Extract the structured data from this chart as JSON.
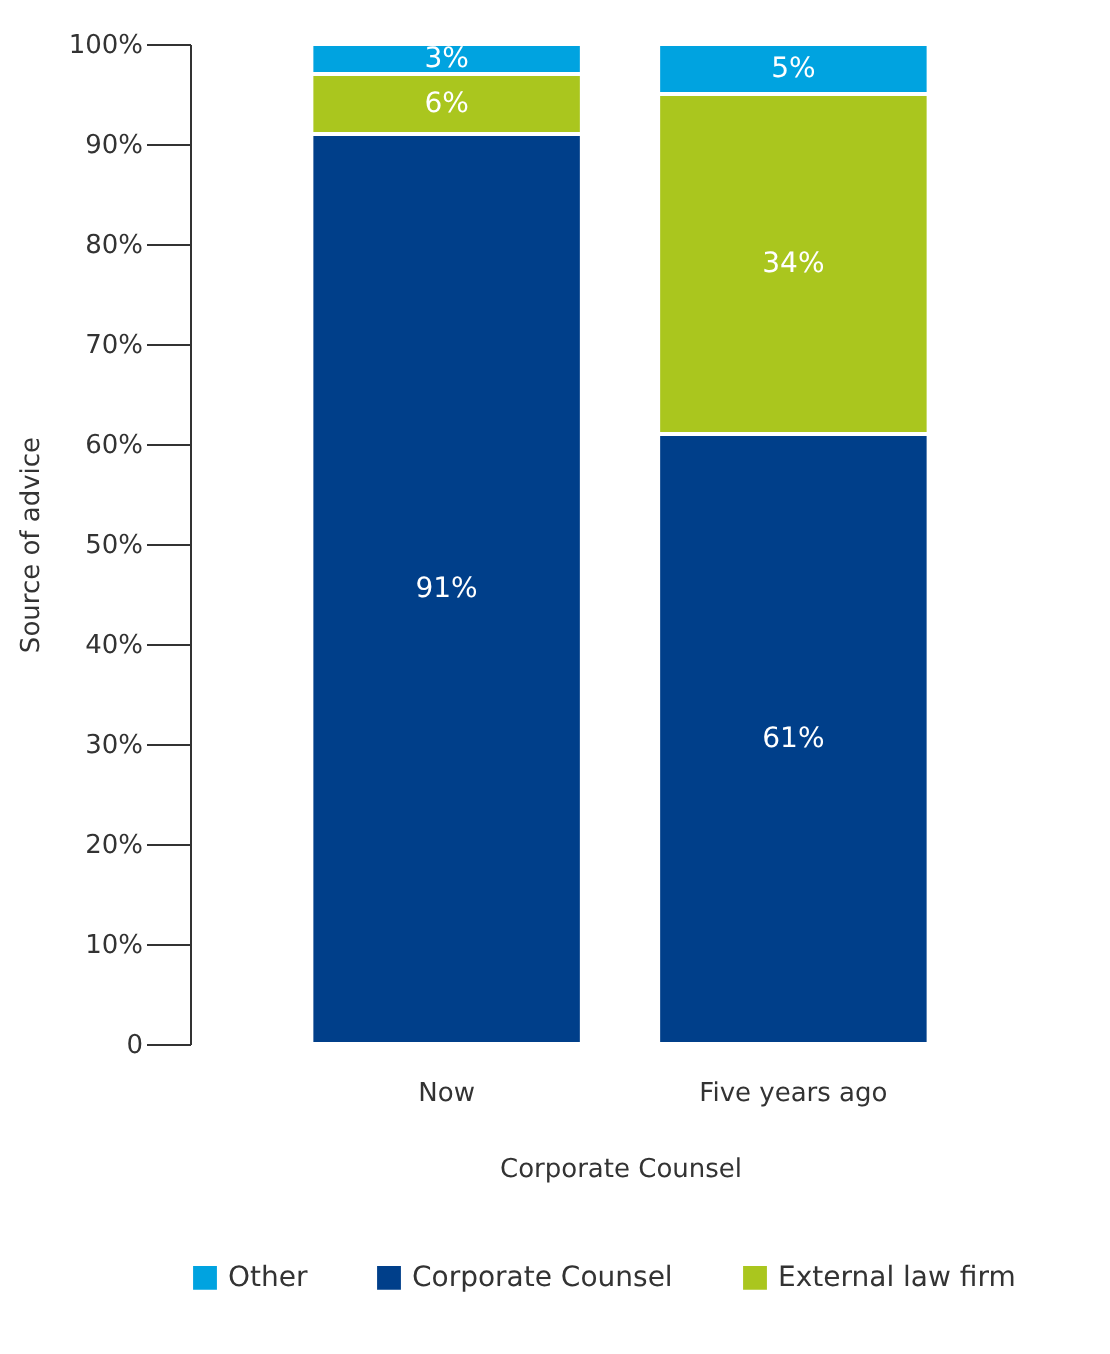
{
  "chart_data": {
    "type": "bar",
    "stacked": true,
    "categories": [
      "Now",
      "Five years ago"
    ],
    "series": [
      {
        "name": "Corporate Counsel",
        "color": "#003f8a",
        "values": [
          91,
          61
        ],
        "value_labels": [
          "91%",
          "61%"
        ]
      },
      {
        "name": "External law firm",
        "color": "#aac61e",
        "values": [
          6,
          34
        ],
        "value_labels": [
          "6%",
          "34%"
        ]
      },
      {
        "name": "Other",
        "color": "#00a3e0",
        "values": [
          3,
          5
        ],
        "value_labels": [
          "3%",
          "5%"
        ]
      }
    ],
    "ylim": [
      0,
      100
    ],
    "yticks": [
      {
        "value": 0,
        "label": "0"
      },
      {
        "value": 10,
        "label": "10%"
      },
      {
        "value": 20,
        "label": "20%"
      },
      {
        "value": 30,
        "label": "30%"
      },
      {
        "value": 40,
        "label": "40%"
      },
      {
        "value": 50,
        "label": "50%"
      },
      {
        "value": 60,
        "label": "60%"
      },
      {
        "value": 70,
        "label": "70%"
      },
      {
        "value": 80,
        "label": "80%"
      },
      {
        "value": 90,
        "label": "90%"
      },
      {
        "value": 100,
        "label": "100%"
      }
    ],
    "ylabel": "Source of advice",
    "xlabel": "Corporate Counsel",
    "legend": "bottom",
    "grid": false
  }
}
